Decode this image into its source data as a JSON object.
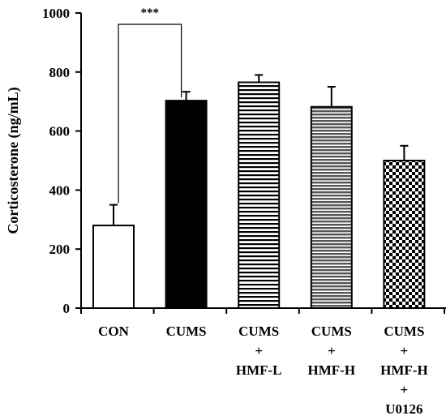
{
  "chart_data": {
    "type": "bar",
    "ylabel": "Corticosterone (ng/mL)",
    "ylim": [
      0,
      1000
    ],
    "yticks": [
      "0",
      "200",
      "400",
      "600",
      "800",
      "1000"
    ],
    "categories": [
      {
        "lines": [
          "CON"
        ]
      },
      {
        "lines": [
          "CUMS"
        ]
      },
      {
        "lines": [
          "CUMS",
          "+",
          "HMF-L"
        ]
      },
      {
        "lines": [
          "CUMS",
          "+",
          "HMF-H"
        ]
      },
      {
        "lines": [
          "CUMS",
          "+",
          "HMF-H",
          "+",
          "U0126"
        ]
      }
    ],
    "values": [
      280,
      703,
      765,
      682,
      500
    ],
    "errors": [
      70,
      30,
      25,
      68,
      50
    ],
    "fills": [
      "white",
      "black",
      "hstripe",
      "hstripe-gray",
      "checker"
    ],
    "significance": {
      "from": 0,
      "to": 1,
      "label": "***"
    },
    "grid": false
  }
}
